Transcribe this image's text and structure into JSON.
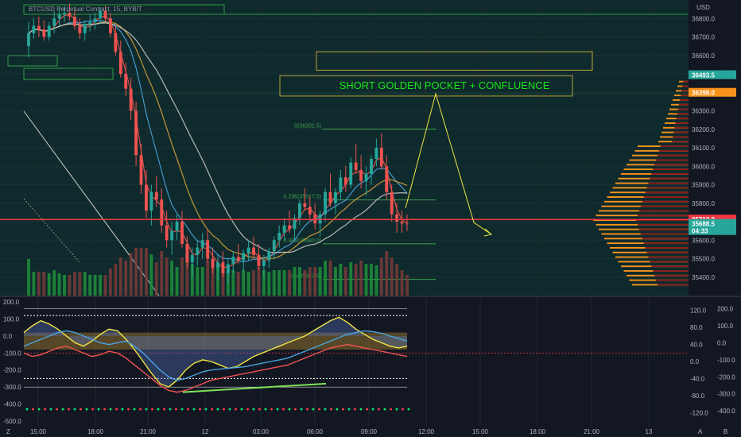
{
  "header": {
    "symbol_line": "BTCUSD Perpetual Contract, 15, BYBIT",
    "currency": "USD"
  },
  "annotation": "SHORT  GOLDEN POCKET + CONFLUENCE",
  "colors": {
    "bg": "#131722",
    "panel_bg": "#0e2a2e",
    "grid": "#1f2a33",
    "up": "#26a69a",
    "down": "#ef5350",
    "vol_up": "#1f8f3a",
    "vol_down": "#7a3a3a",
    "accent_green": "#00e676",
    "accent_yellow": "#f0e442",
    "price_line": "#f23645",
    "profile_orange": "#f7931a",
    "profile_red": "#8b1c1c",
    "zone_border": "#b8a23a"
  },
  "chart_data": [
    {
      "type": "candlestick",
      "title": "BTCUSD Perpetual Contract, 15, BYBIT",
      "ylim": [
        35300,
        36900
      ],
      "y_ticks": [
        35400,
        35500,
        35600,
        35700,
        35800,
        35900,
        36000,
        36100,
        36200,
        36300,
        36400,
        36500,
        36600,
        36700,
        36800
      ],
      "x_ticks": [
        "15:00",
        "18:00",
        "21:00",
        "12",
        "03:00",
        "06:00",
        "09:00",
        "12:00",
        "15:00",
        "18:00",
        "21:00",
        "13"
      ],
      "price_tags": [
        {
          "text": "36493.5",
          "value": 36493.5,
          "color": "#26a69a"
        },
        {
          "text": "36398.0",
          "value": 36398.0,
          "color": "#f7931a"
        },
        {
          "text": "35712.0",
          "value": 35712.0,
          "color": "#f23645"
        },
        {
          "text": "35688.5",
          "value": 35688.5,
          "color": "#26a69a",
          "sub": "04:33"
        }
      ],
      "fib_levels": [
        {
          "label": "0(36201.5)",
          "value": 36201.5
        },
        {
          "label": "0.236(35817.5)",
          "value": 35817.5
        },
        {
          "label": "0.382(35580.0)",
          "value": 35580.0
        },
        {
          "label": "0.5(35387.5)",
          "value": 35387.5
        }
      ],
      "zones": [
        {
          "top": 36620,
          "bottom": 36520
        },
        {
          "top": 36490,
          "bottom": 36380
        }
      ],
      "candles": [
        [
          36650,
          36780,
          36590,
          36720
        ],
        [
          36720,
          36800,
          36690,
          36760
        ],
        [
          36760,
          36810,
          36700,
          36740
        ],
        [
          36740,
          36790,
          36680,
          36700
        ],
        [
          36700,
          36780,
          36680,
          36760
        ],
        [
          36760,
          36840,
          36720,
          36800
        ],
        [
          36800,
          36860,
          36760,
          36820
        ],
        [
          36820,
          36870,
          36780,
          36830
        ],
        [
          36830,
          36880,
          36790,
          36810
        ],
        [
          36810,
          36850,
          36740,
          36760
        ],
        [
          36760,
          36800,
          36690,
          36720
        ],
        [
          36720,
          36790,
          36680,
          36770
        ],
        [
          36770,
          36820,
          36730,
          36780
        ],
        [
          36780,
          36830,
          36740,
          36800
        ],
        [
          36800,
          36860,
          36770,
          36840
        ],
        [
          36840,
          36870,
          36780,
          36800
        ],
        [
          36800,
          36830,
          36700,
          36720
        ],
        [
          36720,
          36760,
          36600,
          36620
        ],
        [
          36620,
          36680,
          36480,
          36500
        ],
        [
          36500,
          36560,
          36380,
          36420
        ],
        [
          36420,
          36480,
          36250,
          36300
        ],
        [
          36300,
          36350,
          36000,
          36060
        ],
        [
          36060,
          36120,
          35850,
          35900
        ],
        [
          35900,
          35980,
          35720,
          35760
        ],
        [
          35760,
          35900,
          35680,
          35860
        ],
        [
          35860,
          35950,
          35780,
          35820
        ],
        [
          35820,
          35880,
          35640,
          35680
        ],
        [
          35680,
          35760,
          35560,
          35600
        ],
        [
          35600,
          35700,
          35520,
          35650
        ],
        [
          35650,
          35740,
          35600,
          35700
        ],
        [
          35700,
          35760,
          35560,
          35580
        ],
        [
          35580,
          35620,
          35450,
          35480
        ],
        [
          35480,
          35560,
          35400,
          35520
        ],
        [
          35520,
          35600,
          35460,
          35560
        ],
        [
          35560,
          35640,
          35500,
          35600
        ],
        [
          35600,
          35660,
          35480,
          35500
        ],
        [
          35500,
          35560,
          35420,
          35450
        ],
        [
          35450,
          35520,
          35380,
          35480
        ],
        [
          35480,
          35540,
          35400,
          35420
        ],
        [
          35420,
          35500,
          35360,
          35470
        ],
        [
          35470,
          35540,
          35420,
          35510
        ],
        [
          35510,
          35580,
          35470,
          35490
        ],
        [
          35490,
          35550,
          35430,
          35530
        ],
        [
          35530,
          35600,
          35490,
          35560
        ],
        [
          35560,
          35620,
          35500,
          35520
        ],
        [
          35520,
          35580,
          35440,
          35460
        ],
        [
          35460,
          35520,
          35400,
          35490
        ],
        [
          35490,
          35560,
          35450,
          35540
        ],
        [
          35540,
          35620,
          35500,
          35600
        ],
        [
          35600,
          35680,
          35560,
          35640
        ],
        [
          35640,
          35720,
          35600,
          35680
        ],
        [
          35680,
          35760,
          35640,
          35660
        ],
        [
          35660,
          35740,
          35600,
          35720
        ],
        [
          35720,
          35820,
          35680,
          35800
        ],
        [
          35800,
          35880,
          35760,
          35780
        ],
        [
          35780,
          35840,
          35700,
          35740
        ],
        [
          35740,
          35800,
          35660,
          35690
        ],
        [
          35690,
          35760,
          35620,
          35740
        ],
        [
          35740,
          35880,
          35700,
          35860
        ],
        [
          35860,
          35960,
          35780,
          35800
        ],
        [
          35800,
          35880,
          35740,
          35860
        ],
        [
          35860,
          35980,
          35820,
          35940
        ],
        [
          35940,
          36000,
          35860,
          35900
        ],
        [
          35900,
          36050,
          35880,
          36020
        ],
        [
          36020,
          36120,
          35960,
          35980
        ],
        [
          35980,
          36060,
          35880,
          35920
        ],
        [
          35920,
          36000,
          35840,
          35960
        ],
        [
          35960,
          36060,
          35900,
          36040
        ],
        [
          36040,
          36150,
          36000,
          36100
        ],
        [
          36100,
          36180,
          35980,
          36000
        ],
        [
          36000,
          36060,
          35820,
          35860
        ],
        [
          35860,
          35900,
          35700,
          35740
        ],
        [
          35740,
          35800,
          35640,
          35700
        ],
        [
          35700,
          35760,
          35640,
          35690
        ],
        [
          35690,
          35740,
          35650,
          35688.5
        ]
      ],
      "volume_profile_note": "visible range volume profile on right side"
    },
    {
      "type": "line",
      "title": "oscillator",
      "ylim_left": [
        -500,
        200
      ],
      "y_ticks_left": [
        -500,
        -400,
        -300,
        -200,
        -100,
        0,
        100,
        200
      ],
      "y_ticks_mid": [
        -120,
        -80,
        -40,
        0,
        40,
        80,
        120
      ],
      "y_ticks_right": [
        -400,
        -300,
        -200,
        -100,
        0,
        100,
        200
      ],
      "x_ticks": [
        "15:00",
        "18:00",
        "21:00",
        "12",
        "03:00",
        "06:00",
        "09:00",
        "12:00",
        "15:00",
        "18:00",
        "21:00",
        "13"
      ],
      "series": [
        {
          "values": [
            20,
            60,
            90,
            70,
            40,
            0,
            -40,
            -60,
            -30,
            10,
            40,
            30,
            -20,
            -80,
            -150,
            -220,
            -280,
            -300,
            -260,
            -200,
            -160,
            -140,
            -150,
            -170,
            -190,
            -180,
            -150,
            -120,
            -100,
            -80,
            -60,
            -40,
            -20,
            0,
            30,
            60,
            90,
            110,
            80,
            40,
            10,
            -20,
            -40,
            -60,
            -70,
            -60
          ]
        },
        {
          "values": [
            -60,
            -40,
            -20,
            0,
            20,
            30,
            20,
            0,
            -20,
            -40,
            -50,
            -40,
            -30,
            -60,
            -100,
            -150,
            -200,
            -240,
            -260,
            -250,
            -230,
            -210,
            -200,
            -195,
            -190,
            -185,
            -180,
            -170,
            -160,
            -150,
            -140,
            -130,
            -110,
            -90,
            -70,
            -50,
            -30,
            -10,
            10,
            20,
            30,
            25,
            15,
            0,
            -15,
            -30
          ]
        },
        {
          "values": [
            -100,
            -120,
            -110,
            -90,
            -70,
            -60,
            -80,
            -100,
            -120,
            -110,
            -90,
            -100,
            -130,
            -170,
            -210,
            -250,
            -290,
            -320,
            -330,
            -320,
            -300,
            -280,
            -260,
            -250,
            -240,
            -230,
            -220,
            -210,
            -200,
            -190,
            -180,
            -170,
            -150,
            -130,
            -110,
            -90,
            -70,
            -60,
            -50,
            -60,
            -70,
            -80,
            -90,
            -100,
            -110,
            -120
          ]
        }
      ]
    }
  ]
}
